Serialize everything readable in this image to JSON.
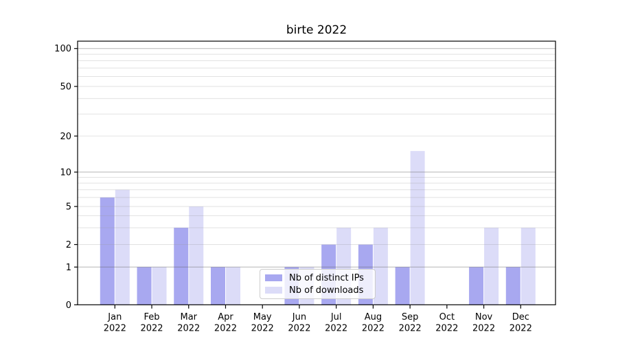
{
  "title": "birte 2022",
  "legend": {
    "items": [
      {
        "label": "Nb of distinct IPs",
        "color": "#a8a8f0"
      },
      {
        "label": "Nb of downloads",
        "color": "#dcdcf8"
      }
    ]
  },
  "chart_data": {
    "type": "bar",
    "title": "birte 2022",
    "categories": [
      {
        "month": "Jan",
        "year": "2022"
      },
      {
        "month": "Feb",
        "year": "2022"
      },
      {
        "month": "Mar",
        "year": "2022"
      },
      {
        "month": "Apr",
        "year": "2022"
      },
      {
        "month": "May",
        "year": "2022"
      },
      {
        "month": "Jun",
        "year": "2022"
      },
      {
        "month": "Jul",
        "year": "2022"
      },
      {
        "month": "Aug",
        "year": "2022"
      },
      {
        "month": "Sep",
        "year": "2022"
      },
      {
        "month": "Oct",
        "year": "2022"
      },
      {
        "month": "Nov",
        "year": "2022"
      },
      {
        "month": "Dec",
        "year": "2022"
      }
    ],
    "series": [
      {
        "name": "Nb of distinct IPs",
        "color": "#a8a8f0",
        "values": [
          6,
          1,
          3,
          1,
          0,
          1,
          2,
          2,
          1,
          0,
          1,
          1
        ]
      },
      {
        "name": "Nb of downloads",
        "color": "#dcdcf8",
        "values": [
          7,
          1,
          5,
          1,
          0,
          1,
          3,
          3,
          15,
          0,
          3,
          3
        ]
      }
    ],
    "xlabel": "",
    "ylabel": "",
    "y_axis": {
      "scale": "symlog",
      "tick_labels": [
        100,
        50,
        20,
        10,
        5,
        2,
        1,
        0
      ],
      "major_gridlines": [
        1,
        10,
        100
      ],
      "minor_gridlines": [
        2,
        3,
        4,
        5,
        6,
        7,
        8,
        9,
        20,
        30,
        40,
        50,
        60,
        70,
        80,
        90
      ]
    },
    "grid": true,
    "legend_position": "inside lower-center"
  }
}
